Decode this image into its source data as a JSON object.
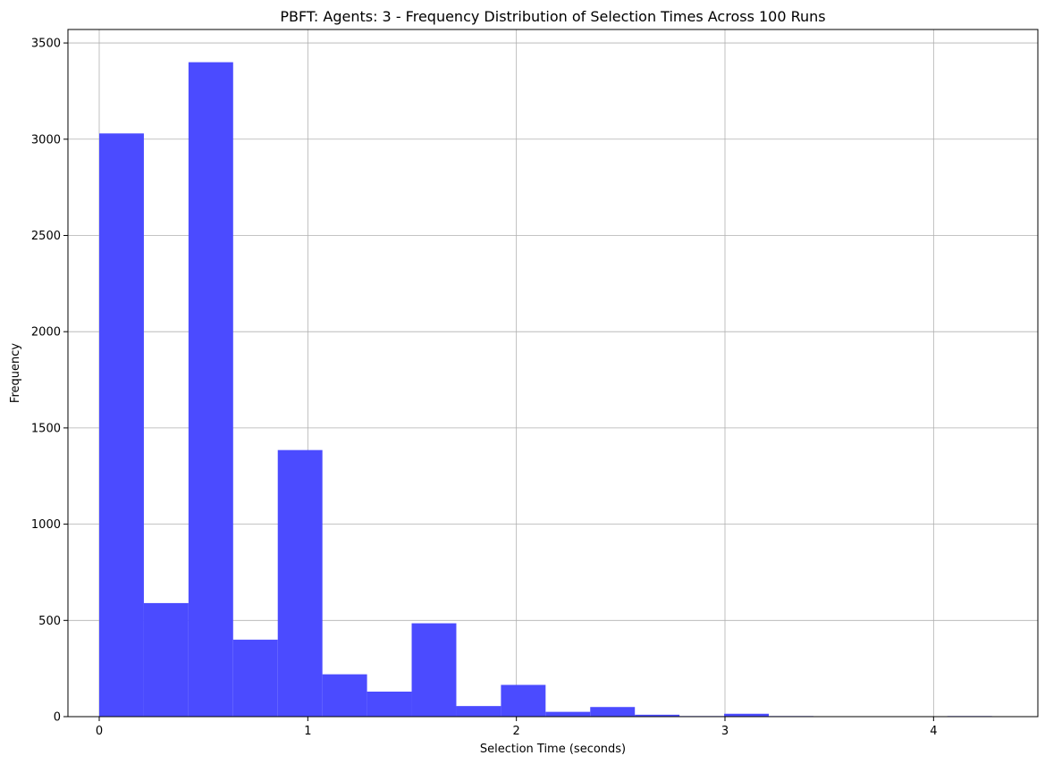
{
  "chart_data": {
    "type": "bar",
    "title": "PBFT: Agents: 3 - Frequency Distribution of Selection Times Across 100 Runs",
    "xlabel": "Selection Time (seconds)",
    "ylabel": "Frequency",
    "xlim": [
      -0.15,
      4.5
    ],
    "ylim": [
      0,
      3570
    ],
    "xticks": [
      0,
      1,
      2,
      3,
      4
    ],
    "yticks": [
      0,
      500,
      1000,
      1500,
      2000,
      2500,
      3000,
      3500
    ],
    "grid": true,
    "bar_color": "#4b4bff",
    "bins": [
      {
        "x0": 0.0,
        "x1": 0.214,
        "value": 3030
      },
      {
        "x0": 0.214,
        "x1": 0.428,
        "value": 590
      },
      {
        "x0": 0.428,
        "x1": 0.642,
        "value": 3400
      },
      {
        "x0": 0.642,
        "x1": 0.856,
        "value": 400
      },
      {
        "x0": 0.856,
        "x1": 1.07,
        "value": 1385
      },
      {
        "x0": 1.07,
        "x1": 1.284,
        "value": 220
      },
      {
        "x0": 1.284,
        "x1": 1.498,
        "value": 130
      },
      {
        "x0": 1.498,
        "x1": 1.712,
        "value": 485
      },
      {
        "x0": 1.712,
        "x1": 1.926,
        "value": 55
      },
      {
        "x0": 1.926,
        "x1": 2.14,
        "value": 165
      },
      {
        "x0": 2.14,
        "x1": 2.354,
        "value": 25
      },
      {
        "x0": 2.354,
        "x1": 2.568,
        "value": 50
      },
      {
        "x0": 2.568,
        "x1": 2.782,
        "value": 10
      },
      {
        "x0": 2.782,
        "x1": 2.996,
        "value": 3
      },
      {
        "x0": 2.996,
        "x1": 3.21,
        "value": 15
      },
      {
        "x0": 3.21,
        "x1": 3.424,
        "value": 3
      },
      {
        "x0": 3.424,
        "x1": 3.638,
        "value": 2
      },
      {
        "x0": 3.638,
        "x1": 3.852,
        "value": 2
      },
      {
        "x0": 3.852,
        "x1": 4.066,
        "value": 0
      },
      {
        "x0": 4.066,
        "x1": 4.28,
        "value": 3
      }
    ]
  }
}
